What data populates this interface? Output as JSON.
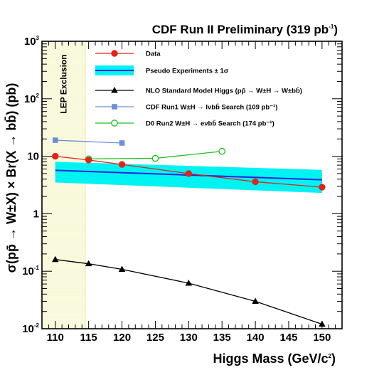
{
  "chart_data": {
    "type": "line",
    "title": "CDF Run II Preliminary (319 pb",
    "title_sup": "-1",
    "title_end": ")",
    "xlabel": "Higgs Mass (GeV/c",
    "xlabel_sup": "2",
    "xlabel_end": ")",
    "ylabel": "σ(pp̄ → W±X) × Br(X → bb̄) (pb)",
    "xlim": [
      108,
      153
    ],
    "ylim": [
      0.01,
      1000
    ],
    "yscale": "log",
    "x_ticks": [
      110,
      115,
      120,
      125,
      130,
      135,
      140,
      145,
      150
    ],
    "x_tick_labels": [
      "110",
      "115",
      "120",
      "125",
      "130",
      "135",
      "140",
      "145",
      "150"
    ],
    "y_ticks": [
      {
        "value": 0.01,
        "base": "10",
        "exp": "-2"
      },
      {
        "value": 0.1,
        "base": "10",
        "exp": "-1"
      },
      {
        "value": 1,
        "base": "1",
        "exp": ""
      },
      {
        "value": 10,
        "base": "10",
        "exp": ""
      },
      {
        "value": 100,
        "base": "10",
        "exp": "2"
      },
      {
        "value": 1000,
        "base": "10",
        "exp": "3"
      }
    ],
    "lep_exclusion": {
      "label": "LEP Exclusion",
      "x_from": 108,
      "x_to": 114.5
    },
    "band": {
      "name": "Pseudo Experiments ± 1σ",
      "x": [
        110,
        150
      ],
      "center": [
        5.7,
        3.9
      ],
      "low": [
        3.5,
        2.3
      ],
      "high": [
        8.0,
        5.8
      ],
      "fill_color": "#00f3f3",
      "line_color": "#2222dd"
    },
    "series": [
      {
        "name": "Data",
        "color": "#e2231a",
        "line_color": "#e2231a",
        "marker": "circle-filled",
        "x": [
          110,
          115,
          120,
          130,
          140,
          150
        ],
        "y": [
          10.0,
          8.6,
          7.2,
          5.0,
          3.6,
          2.9
        ]
      },
      {
        "name": "NLO Standard Model Higgs (pp̄ → W±H → W±bb̄)",
        "color": "#000000",
        "line_color": "#000000",
        "marker": "triangle",
        "x": [
          110,
          115,
          120,
          130,
          140,
          150
        ],
        "y": [
          0.16,
          0.135,
          0.108,
          0.062,
          0.03,
          0.012
        ]
      },
      {
        "name": "CDF Run1 W±H → lνbb̄ Search (109 pb⁻¹)",
        "color": "#6d8fd8",
        "line_color": "#6d8fd8",
        "marker": "square",
        "x": [
          110,
          120
        ],
        "y": [
          19.0,
          17.0
        ]
      },
      {
        "name": "D0 Run2 W±H → eνbb̄ Search (174 pb⁻¹)",
        "color": "#1fbf1f",
        "line_color": "#1fbf1f",
        "marker": "circle-open",
        "x": [
          115,
          125,
          135
        ],
        "y": [
          9.0,
          9.2,
          12.2
        ]
      }
    ],
    "legend": [
      {
        "label": "Data",
        "kind": "data"
      },
      {
        "label": "Pseudo Experiments ± 1σ",
        "kind": "band"
      },
      {
        "label": "NLO Standard Model Higgs (pp̄ → W±H → W±bb̄)",
        "kind": "sm"
      },
      {
        "label": "CDF Run1 W±H → lνbb̄ Search (109 pb⁻¹)",
        "kind": "cdf"
      },
      {
        "label": "D0 Run2 W±H → eνbb̄ Search (174 pb⁻¹)",
        "kind": "d0"
      }
    ],
    "legend_placement": "top-right",
    "grid": false
  }
}
